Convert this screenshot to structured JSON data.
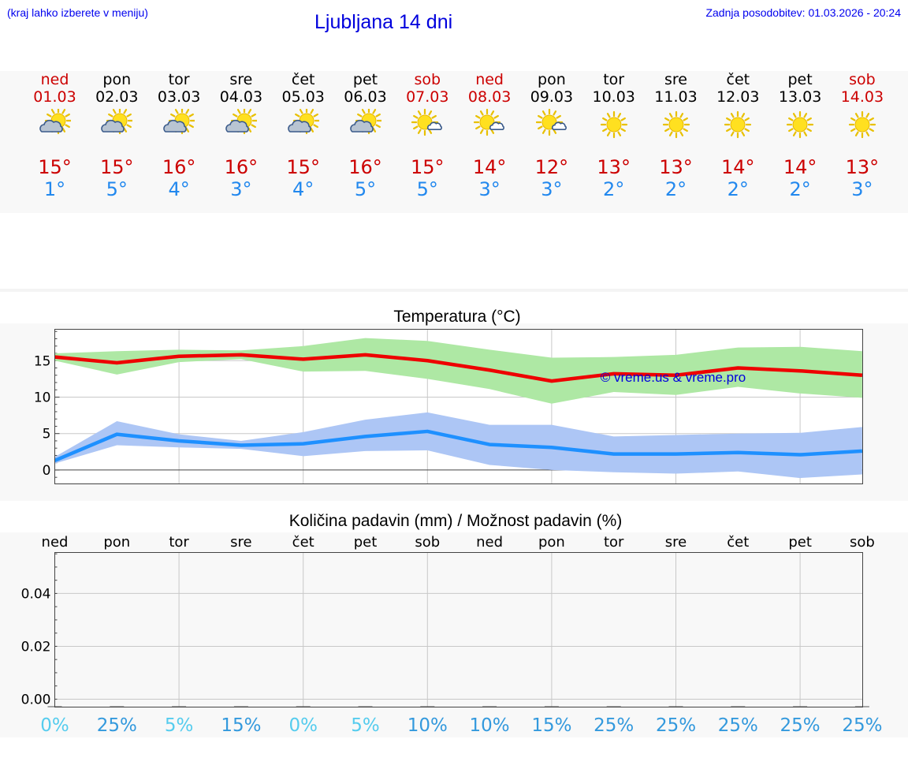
{
  "header": {
    "menu_hint": "(kraj lahko izberete v meniju)",
    "title": "Ljubljana 14 dni",
    "updated": "Zadnja posodobitev: 01.03.2026 - 20:24"
  },
  "colors": {
    "weekend": "#cc0000",
    "max_temp": "#cc0000",
    "min_temp": "#2288ee",
    "max_line": "#ee0000",
    "max_band": "#aee8a4",
    "min_line": "#1e90ff",
    "min_band": "#adc6f5",
    "prob_low": "#55ccee",
    "prob_high": "#3399dd"
  },
  "days": [
    {
      "name": "ned",
      "date": "01.03",
      "weekend": true,
      "icon": "sun-cloud-icon",
      "tmax": "15°",
      "tmin": "1°"
    },
    {
      "name": "pon",
      "date": "02.03",
      "weekend": false,
      "icon": "sun-cloud-icon",
      "tmax": "15°",
      "tmin": "5°"
    },
    {
      "name": "tor",
      "date": "03.03",
      "weekend": false,
      "icon": "sun-cloud-icon",
      "tmax": "16°",
      "tmin": "4°"
    },
    {
      "name": "sre",
      "date": "04.03",
      "weekend": false,
      "icon": "sun-cloud-icon",
      "tmax": "16°",
      "tmin": "3°"
    },
    {
      "name": "čet",
      "date": "05.03",
      "weekend": false,
      "icon": "sun-cloud-icon",
      "tmax": "15°",
      "tmin": "4°"
    },
    {
      "name": "pet",
      "date": "06.03",
      "weekend": false,
      "icon": "sun-cloud-icon",
      "tmax": "16°",
      "tmin": "5°"
    },
    {
      "name": "sob",
      "date": "07.03",
      "weekend": true,
      "icon": "sun-small-cloud-icon",
      "tmax": "15°",
      "tmin": "5°"
    },
    {
      "name": "ned",
      "date": "08.03",
      "weekend": true,
      "icon": "sun-small-cloud-icon",
      "tmax": "14°",
      "tmin": "3°"
    },
    {
      "name": "pon",
      "date": "09.03",
      "weekend": false,
      "icon": "sun-small-cloud-icon",
      "tmax": "12°",
      "tmin": "3°"
    },
    {
      "name": "tor",
      "date": "10.03",
      "weekend": false,
      "icon": "sun-icon",
      "tmax": "13°",
      "tmin": "2°"
    },
    {
      "name": "sre",
      "date": "11.03",
      "weekend": false,
      "icon": "sun-icon",
      "tmax": "13°",
      "tmin": "2°"
    },
    {
      "name": "čet",
      "date": "12.03",
      "weekend": false,
      "icon": "sun-icon",
      "tmax": "14°",
      "tmin": "2°"
    },
    {
      "name": "pet",
      "date": "13.03",
      "weekend": false,
      "icon": "sun-icon",
      "tmax": "14°",
      "tmin": "2°"
    },
    {
      "name": "sob",
      "date": "14.03",
      "weekend": true,
      "icon": "sun-icon",
      "tmax": "13°",
      "tmin": "3°"
    }
  ],
  "chart_data": [
    {
      "type": "line",
      "title": "Temperatura (°C)",
      "xlabel": "",
      "ylabel": "",
      "ylim": [
        -1.9,
        19.3
      ],
      "yticks": [
        0,
        5,
        10,
        15
      ],
      "grid": true,
      "watermark": "© vreme.us & vreme.pro",
      "categories": [
        "01.03",
        "02.03",
        "03.03",
        "04.03",
        "05.03",
        "06.03",
        "07.03",
        "08.03",
        "09.03",
        "10.03",
        "11.03",
        "12.03",
        "13.03",
        "14.03"
      ],
      "series": [
        {
          "role": "max",
          "values": [
            15.5,
            14.7,
            15.6,
            15.8,
            15.2,
            15.8,
            15.0,
            13.7,
            12.2,
            13.2,
            13.0,
            14.0,
            13.6,
            13.0
          ],
          "band_high": [
            16.0,
            16.3,
            16.5,
            16.4,
            17.0,
            18.1,
            17.7,
            16.5,
            15.4,
            15.5,
            15.8,
            16.8,
            16.9,
            16.3
          ],
          "band_low": [
            15.0,
            13.1,
            14.8,
            15.2,
            13.5,
            13.6,
            12.5,
            11.1,
            9.1,
            10.7,
            10.3,
            11.4,
            10.5,
            9.9
          ]
        },
        {
          "role": "min",
          "values": [
            1.3,
            4.9,
            4.0,
            3.4,
            3.6,
            4.6,
            5.3,
            3.5,
            3.1,
            2.2,
            2.2,
            2.4,
            2.1,
            2.6
          ],
          "band_high": [
            1.8,
            6.7,
            4.9,
            4.0,
            5.2,
            6.9,
            7.9,
            6.2,
            6.2,
            4.6,
            4.8,
            5.0,
            5.1,
            5.9
          ],
          "band_low": [
            0.9,
            3.4,
            3.1,
            2.9,
            1.9,
            2.6,
            2.7,
            0.7,
            0.0,
            -0.3,
            -0.5,
            -0.2,
            -1.1,
            -0.6
          ]
        }
      ]
    },
    {
      "type": "bar",
      "title": "Količina padavin (mm) / Možnost padavin (%)",
      "xlabel": "",
      "ylabel": "",
      "ylim": [
        -0.003,
        0.0555
      ],
      "yticks": [
        "0.00",
        "0.02",
        "0.04"
      ],
      "grid": true,
      "categories": [
        "ned",
        "pon",
        "tor",
        "sre",
        "čet",
        "pet",
        "sob",
        "ned",
        "pon",
        "tor",
        "sre",
        "čet",
        "pet",
        "sob"
      ],
      "values": [
        0,
        0,
        0,
        0,
        0,
        0,
        0,
        0,
        0,
        0,
        0,
        0,
        0,
        0
      ],
      "probability": [
        "0%",
        "25%",
        "5%",
        "15%",
        "0%",
        "5%",
        "10%",
        "10%",
        "15%",
        "25%",
        "25%",
        "25%",
        "25%",
        "25%"
      ]
    }
  ]
}
